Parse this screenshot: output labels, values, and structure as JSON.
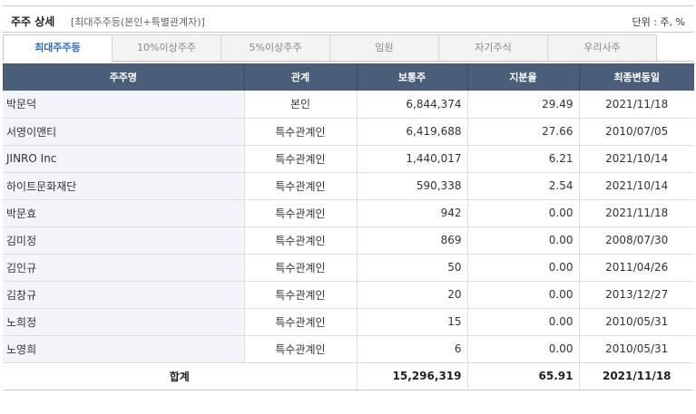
{
  "header": {
    "title": "주주 상세",
    "subtitle": "[최대주주등(본인+특별관계자)]",
    "unit": "단위 : 주, %"
  },
  "tabs": [
    {
      "label": "최대주주등",
      "active": true
    },
    {
      "label": "10%이상주주",
      "active": false
    },
    {
      "label": "5%이상주주",
      "active": false
    },
    {
      "label": "임원",
      "active": false
    },
    {
      "label": "자기주식",
      "active": false
    },
    {
      "label": "우리사주",
      "active": false
    }
  ],
  "table": {
    "columns": [
      "주주명",
      "관계",
      "보통주",
      "지분율",
      "최종변동일"
    ],
    "rows": [
      [
        "박문덕",
        "본인",
        "6,844,374",
        "29.49",
        "2021/11/18"
      ],
      [
        "서영이앤티",
        "특수관계인",
        "6,419,688",
        "27.66",
        "2010/07/05"
      ],
      [
        "JINRO Inc",
        "특수관계인",
        "1,440,017",
        "6.21",
        "2021/10/14"
      ],
      [
        "하이트문화재단",
        "특수관계인",
        "590,338",
        "2.54",
        "2021/10/14"
      ],
      [
        "박문효",
        "특수관계인",
        "942",
        "0.00",
        "2021/11/18"
      ],
      [
        "김미정",
        "특수관계인",
        "869",
        "0.00",
        "2008/07/30"
      ],
      [
        "김인규",
        "특수관계인",
        "50",
        "0.00",
        "2011/04/26"
      ],
      [
        "김창규",
        "특수관계인",
        "20",
        "0.00",
        "2013/12/27"
      ],
      [
        "노희정",
        "특수관계인",
        "15",
        "0.00",
        "2010/05/31"
      ],
      [
        "노영희",
        "특수관계인",
        "6",
        "0.00",
        "2010/05/31"
      ]
    ],
    "total": {
      "label": "합계",
      "common_shares": "15,296,319",
      "ratio": "65.91",
      "date": "2021/11/18"
    }
  }
}
